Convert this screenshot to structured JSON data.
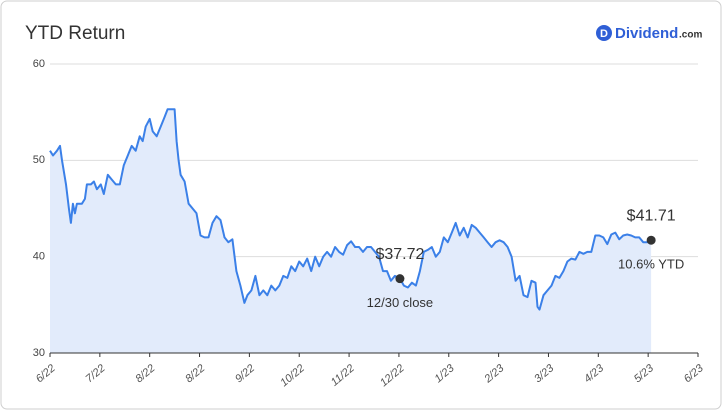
{
  "chart_data": {
    "type": "line",
    "title": "YTD Return",
    "brand": {
      "icon": "D",
      "name": "Dividend",
      "suffix": ".com"
    },
    "xlim": [
      0,
      13
    ],
    "xticks": [
      {
        "value": 0,
        "label": "6/22"
      },
      {
        "value": 1,
        "label": "7/22"
      },
      {
        "value": 2,
        "label": "8/22"
      },
      {
        "value": 3,
        "label": "8/22"
      },
      {
        "value": 4,
        "label": "9/22"
      },
      {
        "value": 5,
        "label": "10/22"
      },
      {
        "value": 6,
        "label": "11/22"
      },
      {
        "value": 7,
        "label": "12/22"
      },
      {
        "value": 8,
        "label": "1/23"
      },
      {
        "value": 9,
        "label": "2/23"
      },
      {
        "value": 10,
        "label": "3/23"
      },
      {
        "value": 11,
        "label": "4/23"
      },
      {
        "value": 12,
        "label": "5/23"
      },
      {
        "value": 13,
        "label": "6/23"
      }
    ],
    "ylim": [
      30,
      60
    ],
    "yticks": [
      30,
      40,
      50,
      60
    ],
    "grid": true,
    "color": "#3b80e8",
    "fill_color": "#e2ebfb",
    "x": [
      0,
      0.06,
      0.14,
      0.2,
      0.24,
      0.32,
      0.38,
      0.42,
      0.46,
      0.5,
      0.54,
      0.64,
      0.7,
      0.74,
      0.82,
      0.88,
      0.94,
      1.02,
      1.08,
      1.16,
      1.24,
      1.32,
      1.4,
      1.48,
      1.56,
      1.64,
      1.72,
      1.8,
      1.86,
      1.92,
      2.0,
      2.06,
      2.14,
      2.22,
      2.3,
      2.36,
      2.5,
      2.54,
      2.58,
      2.62,
      2.7,
      2.78,
      2.86,
      2.94,
      3.02,
      3.1,
      3.18,
      3.26,
      3.34,
      3.42,
      3.5,
      3.58,
      3.66,
      3.74,
      3.82,
      3.9,
      3.96,
      4.04,
      4.12,
      4.2,
      4.28,
      4.36,
      4.44,
      4.52,
      4.6,
      4.68,
      4.76,
      4.84,
      4.92,
      5.0,
      5.08,
      5.16,
      5.24,
      5.32,
      5.4,
      5.48,
      5.56,
      5.64,
      5.72,
      5.8,
      5.88,
      5.96,
      6.04,
      6.12,
      6.2,
      6.28,
      6.36,
      6.44,
      6.52,
      6.6,
      6.68,
      6.76,
      6.84,
      6.92,
      7.02,
      7.1,
      7.18,
      7.26,
      7.34,
      7.42,
      7.5,
      7.58,
      7.66,
      7.74,
      7.82,
      7.9,
      7.98,
      8.06,
      8.14,
      8.22,
      8.3,
      8.38,
      8.46,
      8.54,
      8.62,
      8.7,
      8.78,
      8.86,
      8.94,
      9.02,
      9.1,
      9.18,
      9.26,
      9.34,
      9.42,
      9.5,
      9.58,
      9.66,
      9.74,
      9.78,
      9.82,
      9.9,
      9.98,
      10.06,
      10.14,
      10.22,
      10.3,
      10.38,
      10.46,
      10.54,
      10.62,
      10.7,
      10.78,
      10.86,
      10.94,
      11.02,
      11.1,
      11.18,
      11.26,
      11.34,
      11.42,
      11.5,
      11.58,
      11.66,
      11.74,
      11.82,
      11.9,
      11.98,
      12.06
    ],
    "values": [
      51,
      50.5,
      51,
      51.5,
      50,
      47.5,
      45,
      43.5,
      45.5,
      44.5,
      45.5,
      45.5,
      46,
      47.5,
      47.5,
      47.8,
      47,
      47.5,
      46.5,
      48.5,
      48,
      47.5,
      47.5,
      49.5,
      50.5,
      51.5,
      51,
      52.5,
      52,
      53.5,
      54.3,
      53,
      52.5,
      53.5,
      54.5,
      55.3,
      55.3,
      52,
      50,
      48.5,
      47.8,
      45.5,
      45,
      44.5,
      42.2,
      42,
      42,
      43.5,
      44.2,
      43.8,
      42,
      41.5,
      41.8,
      38.5,
      37,
      35.2,
      36,
      36.5,
      38,
      36,
      36.5,
      36,
      37,
      36.5,
      37,
      38,
      37.8,
      39,
      38.5,
      39.5,
      39,
      39.8,
      38.5,
      40,
      39,
      40,
      40.5,
      40,
      41,
      40.5,
      40.2,
      41.2,
      41.6,
      41,
      41,
      40.5,
      41,
      41,
      40.5,
      40,
      38.5,
      38.5,
      37.5,
      38,
      37.72,
      37,
      36.8,
      37.3,
      37,
      38.5,
      40.5,
      40.7,
      41,
      40,
      40.5,
      42,
      41.5,
      42.5,
      43.5,
      42.2,
      43,
      42,
      43.3,
      43,
      42.5,
      42,
      41.5,
      41,
      41.5,
      41.7,
      41.5,
      41,
      40,
      37.5,
      38,
      36,
      35.8,
      37.5,
      37.3,
      34.8,
      34.5,
      36,
      36.5,
      37,
      38,
      37.8,
      38.5,
      39.5,
      39.8,
      39.7,
      40.5,
      40.3,
      40.5,
      40.5,
      42.2,
      42.2,
      42,
      41.3,
      42.3,
      42.5,
      41.8,
      42.2,
      42.3,
      42.2,
      42,
      42,
      41.5,
      41.5,
      41.71
    ],
    "annotations": [
      {
        "x": 7.02,
        "value": 37.72,
        "label": "$37.72",
        "note": "12/30 close"
      },
      {
        "x": 12.06,
        "value": 41.71,
        "label": "$41.71",
        "note": "10.6% YTD"
      }
    ]
  }
}
